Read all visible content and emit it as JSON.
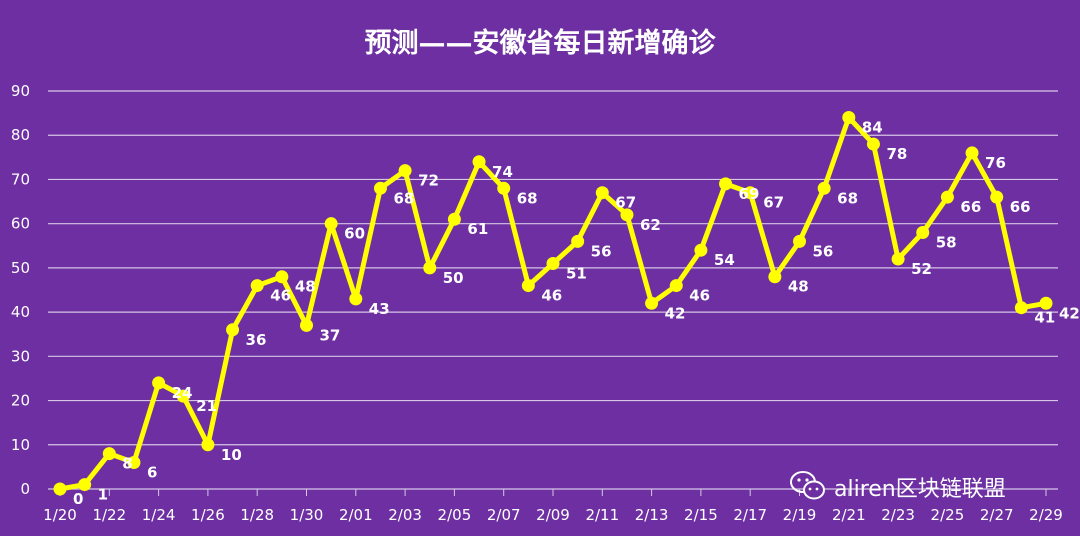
{
  "colors": {
    "background": "#6d2fa1",
    "line": "#ffff00",
    "gridline": "#d6c6e6",
    "text": "#ffffff"
  },
  "watermark": {
    "icon": "wechat-icon",
    "text": "aliren区块链联盟"
  },
  "chart_data": {
    "type": "line",
    "title": "预测——安徽省每日新增确诊",
    "xlabel": "",
    "ylabel": "",
    "ylim": [
      0,
      90
    ],
    "yticks": [
      0,
      10,
      20,
      30,
      40,
      50,
      60,
      70,
      80,
      90
    ],
    "grid": true,
    "legend": "none",
    "xtick_labels": [
      "1/20",
      "1/22",
      "1/24",
      "1/26",
      "1/28",
      "1/30",
      "2/01",
      "2/03",
      "2/05",
      "2/07",
      "2/09",
      "2/11",
      "2/13",
      "2/15",
      "2/17",
      "2/19",
      "2/21",
      "2/23",
      "2/25",
      "2/27",
      "2/29"
    ],
    "x": [
      "1/20",
      "1/21",
      "1/22",
      "1/23",
      "1/24",
      "1/25",
      "1/26",
      "1/27",
      "1/28",
      "1/29",
      "1/30",
      "1/31",
      "2/01",
      "2/02",
      "2/03",
      "2/04",
      "2/05",
      "2/06",
      "2/07",
      "2/08",
      "2/09",
      "2/10",
      "2/11",
      "2/12",
      "2/13",
      "2/14",
      "2/15",
      "2/16",
      "2/17",
      "2/18",
      "2/19",
      "2/20",
      "2/21",
      "2/22",
      "2/23",
      "2/24",
      "2/25",
      "2/26",
      "2/27",
      "2/28",
      "2/29"
    ],
    "series": [
      {
        "values": [
          0,
          1,
          8,
          6,
          24,
          21,
          10,
          36,
          46,
          48,
          37,
          60,
          43,
          68,
          72,
          50,
          61,
          74,
          68,
          46,
          51,
          56,
          67,
          62,
          42,
          46,
          54,
          69,
          67,
          48,
          56,
          68,
          84,
          78,
          52,
          58,
          66,
          76,
          66,
          41,
          42
        ]
      }
    ]
  }
}
